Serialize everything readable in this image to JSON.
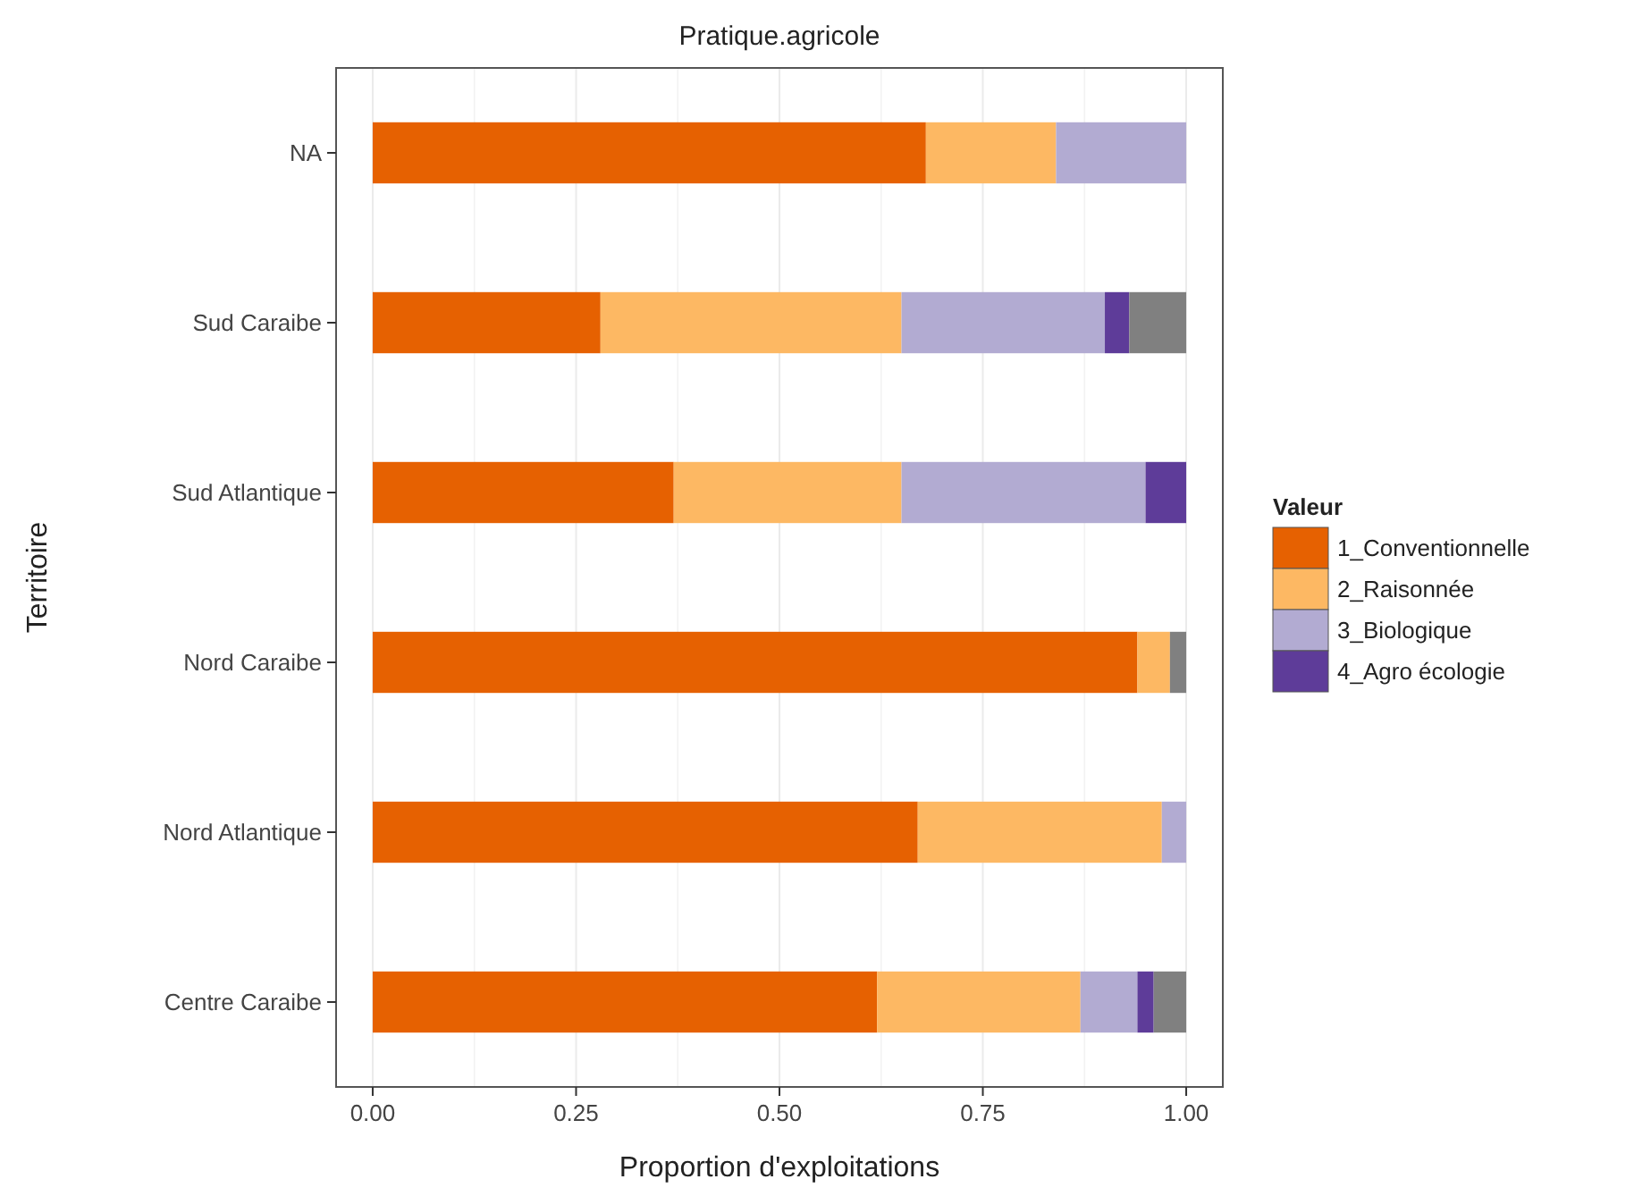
{
  "chart_data": {
    "type": "bar",
    "orientation": "horizontal",
    "stacked": true,
    "title": "Pratique.agricole",
    "xlabel": "Proportion d'exploitations",
    "ylabel": "Territoire",
    "legend_title": "Valeur",
    "categories": [
      "NA",
      "Sud Caraibe",
      "Sud Atlantique",
      "Nord Caraibe",
      "Nord Atlantique",
      "Centre Caraibe"
    ],
    "series": [
      {
        "name": "1_Conventionnelle",
        "color": "#e66101",
        "values": [
          0.68,
          0.28,
          0.37,
          0.94,
          0.67,
          0.62
        ]
      },
      {
        "name": "2_Raisonnée",
        "color": "#fdb863",
        "values": [
          0.16,
          0.37,
          0.28,
          0.04,
          0.3,
          0.25
        ]
      },
      {
        "name": "3_Biologique",
        "color": "#b2abd2",
        "values": [
          0.16,
          0.25,
          0.3,
          0,
          0.03,
          0.07
        ]
      },
      {
        "name": "4_Agro écologie",
        "color": "#5e3c99",
        "values": [
          0,
          0.03,
          0.05,
          0,
          0,
          0.02
        ]
      },
      {
        "color": "#808080",
        "values": [
          0,
          0.07,
          0,
          0.02,
          0,
          0.04
        ]
      }
    ],
    "xlim": [
      -0.045,
      1.045
    ],
    "xticks": [
      {
        "value": 0,
        "label": "0.00"
      },
      {
        "value": 0.25,
        "label": "0.25"
      },
      {
        "value": 0.5,
        "label": "0.50"
      },
      {
        "value": 0.75,
        "label": "0.75"
      },
      {
        "value": 1,
        "label": "1.00"
      }
    ],
    "grid": "x",
    "legend": "right"
  }
}
